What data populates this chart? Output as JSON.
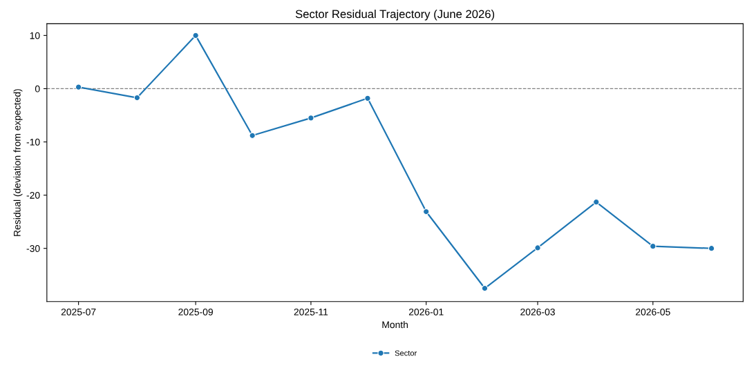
{
  "chart_data": {
    "type": "line",
    "title": "Sector Residual Trajectory (June 2026)",
    "xlabel": "Month",
    "ylabel": "Residual (deviation from expected)",
    "x": [
      "2025-07",
      "2025-08",
      "2025-09",
      "2025-10",
      "2025-11",
      "2025-12",
      "2026-01",
      "2026-02",
      "2026-03",
      "2026-04",
      "2026-05",
      "2026-06"
    ],
    "series": [
      {
        "name": "Sector",
        "color": "#1f77b4",
        "values": [
          0.3,
          -1.7,
          10.0,
          -8.8,
          -5.5,
          -1.8,
          -23.1,
          -37.5,
          -29.9,
          -21.3,
          -29.6,
          -30.0
        ]
      }
    ],
    "xlim": [
      "2025-06-14T06:00",
      "2026-06-17T18:00"
    ],
    "xticks": [
      "2025-07",
      "2025-09",
      "2025-11",
      "2026-01",
      "2026-03",
      "2026-05"
    ],
    "ylim": [
      -40,
      12.2
    ],
    "yticks": [
      10,
      0,
      -10,
      -20,
      -30
    ],
    "ref_lines": [
      {
        "axis": "y",
        "value": 0,
        "color": "#808080",
        "line_style": "dashed"
      }
    ],
    "marker": "circle",
    "line_style": "solid",
    "legend": "bottom",
    "grid": false
  }
}
